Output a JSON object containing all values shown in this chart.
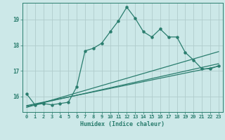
{
  "title": "",
  "xlabel": "Humidex (Indice chaleur)",
  "ylabel": "",
  "bg_color": "#cce8e8",
  "line_color": "#2a7d6e",
  "grid_color": "#b0cccc",
  "xlim": [
    -0.5,
    23.5
  ],
  "ylim": [
    15.4,
    19.65
  ],
  "yticks": [
    16,
    17,
    18,
    19
  ],
  "xticks": [
    0,
    1,
    2,
    3,
    4,
    5,
    6,
    7,
    8,
    9,
    10,
    11,
    12,
    13,
    14,
    15,
    16,
    17,
    18,
    19,
    20,
    21,
    22,
    23
  ],
  "main_x": [
    0,
    1,
    2,
    3,
    4,
    5,
    6,
    7,
    8,
    9,
    10,
    11,
    12,
    13,
    14,
    15,
    16,
    17,
    18,
    19,
    20,
    21,
    22,
    23
  ],
  "main_y": [
    16.1,
    15.68,
    15.73,
    15.68,
    15.73,
    15.78,
    16.38,
    17.78,
    17.88,
    18.08,
    18.52,
    18.95,
    19.48,
    19.05,
    18.52,
    18.32,
    18.63,
    18.32,
    18.32,
    17.72,
    17.42,
    17.08,
    17.08,
    17.2
  ],
  "line1_x": [
    0,
    23
  ],
  "line1_y": [
    15.58,
    17.75
  ],
  "line2_x": [
    0,
    23
  ],
  "line2_y": [
    15.62,
    17.28
  ],
  "line3_x": [
    0,
    23
  ],
  "line3_y": [
    15.65,
    17.18
  ]
}
